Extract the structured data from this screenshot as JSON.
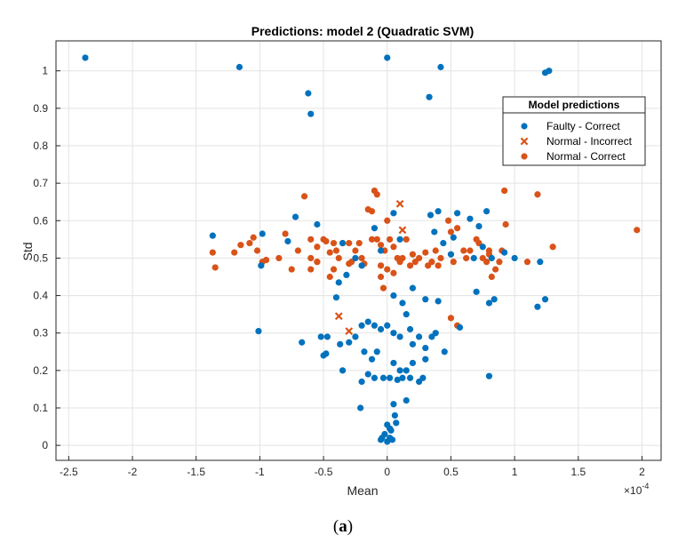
{
  "chart_data": {
    "type": "scatter",
    "title": "Predictions: model 2 (Quadratic SVM)",
    "xlabel": "Mean",
    "ylabel": "Std",
    "x_exponent_label": "×10^-4",
    "x_scale_base": "10",
    "x_scale_exp": "-4",
    "xlim": [
      -2.6,
      2.15
    ],
    "ylim": [
      -0.04,
      1.08
    ],
    "xticks": [
      -2.5,
      -2,
      -1.5,
      -1,
      -0.5,
      0,
      0.5,
      1,
      1.5,
      2
    ],
    "xtick_labels": [
      "-2.5",
      "-2",
      "-1.5",
      "-1",
      "-0.5",
      "0",
      "0.5",
      "1",
      "1.5",
      "2"
    ],
    "yticks": [
      0,
      0.1,
      0.2,
      0.3,
      0.4,
      0.5,
      0.6,
      0.7,
      0.8,
      0.9,
      1
    ],
    "ytick_labels": [
      "0",
      "0.1",
      "0.2",
      "0.3",
      "0.4",
      "0.5",
      "0.6",
      "0.7",
      "0.8",
      "0.9",
      "1"
    ],
    "grid": true,
    "legend_title": "Model predictions",
    "legend_position": "top-right",
    "series": [
      {
        "name": "Faulty - Correct",
        "marker": "dot",
        "color": "#0072BD",
        "points": [
          [
            -2.37,
            1.035
          ],
          [
            -1.16,
            1.01
          ],
          [
            0.0,
            1.035
          ],
          [
            0.42,
            1.01
          ],
          [
            1.24,
            0.995
          ],
          [
            1.27,
            1.0
          ],
          [
            -0.62,
            0.94
          ],
          [
            -0.6,
            0.885
          ],
          [
            0.33,
            0.93
          ],
          [
            -1.37,
            0.56
          ],
          [
            -0.98,
            0.565
          ],
          [
            -0.99,
            0.48
          ],
          [
            -0.72,
            0.61
          ],
          [
            -0.78,
            0.545
          ],
          [
            -1.01,
            0.305
          ],
          [
            -0.67,
            0.275
          ],
          [
            -0.55,
            0.59
          ],
          [
            -0.35,
            0.54
          ],
          [
            -0.25,
            0.5
          ],
          [
            -0.1,
            0.58
          ],
          [
            -0.05,
            0.52
          ],
          [
            0.05,
            0.62
          ],
          [
            0.1,
            0.55
          ],
          [
            0.34,
            0.615
          ],
          [
            0.4,
            0.625
          ],
          [
            0.37,
            0.57
          ],
          [
            0.44,
            0.54
          ],
          [
            0.55,
            0.62
          ],
          [
            0.52,
            0.555
          ],
          [
            0.5,
            0.51
          ],
          [
            0.65,
            0.605
          ],
          [
            0.72,
            0.585
          ],
          [
            0.78,
            0.625
          ],
          [
            0.68,
            0.5
          ],
          [
            0.75,
            0.53
          ],
          [
            0.82,
            0.5
          ],
          [
            0.92,
            0.515
          ],
          [
            1.0,
            0.5
          ],
          [
            0.7,
            0.41
          ],
          [
            0.8,
            0.38
          ],
          [
            0.84,
            0.39
          ],
          [
            1.2,
            0.49
          ],
          [
            1.18,
            0.37
          ],
          [
            1.24,
            0.39
          ],
          [
            0.8,
            0.185
          ],
          [
            -0.4,
            0.395
          ],
          [
            -0.38,
            0.435
          ],
          [
            -0.32,
            0.455
          ],
          [
            -0.2,
            0.48
          ],
          [
            0.05,
            0.4
          ],
          [
            0.12,
            0.38
          ],
          [
            0.2,
            0.42
          ],
          [
            0.3,
            0.39
          ],
          [
            0.4,
            0.385
          ],
          [
            0.57,
            0.315
          ],
          [
            0.38,
            0.3
          ],
          [
            0.35,
            0.29
          ],
          [
            0.3,
            0.26
          ],
          [
            0.45,
            0.25
          ],
          [
            -0.48,
            0.245
          ],
          [
            -0.52,
            0.29
          ],
          [
            -0.47,
            0.29
          ],
          [
            -0.37,
            0.27
          ],
          [
            -0.3,
            0.275
          ],
          [
            -0.35,
            0.2
          ],
          [
            -0.2,
            0.32
          ],
          [
            -0.15,
            0.33
          ],
          [
            -0.1,
            0.32
          ],
          [
            -0.05,
            0.31
          ],
          [
            0.0,
            0.32
          ],
          [
            0.05,
            0.3
          ],
          [
            0.1,
            0.29
          ],
          [
            0.15,
            0.35
          ],
          [
            0.18,
            0.31
          ],
          [
            0.25,
            0.29
          ],
          [
            0.2,
            0.27
          ],
          [
            -0.25,
            0.29
          ],
          [
            -0.18,
            0.25
          ],
          [
            -0.12,
            0.23
          ],
          [
            -0.08,
            0.25
          ],
          [
            0.05,
            0.22
          ],
          [
            0.1,
            0.2
          ],
          [
            0.15,
            0.2
          ],
          [
            0.2,
            0.22
          ],
          [
            0.3,
            0.23
          ],
          [
            -0.15,
            0.19
          ],
          [
            -0.1,
            0.18
          ],
          [
            -0.03,
            0.18
          ],
          [
            0.02,
            0.18
          ],
          [
            0.08,
            0.175
          ],
          [
            0.12,
            0.18
          ],
          [
            0.18,
            0.18
          ],
          [
            0.25,
            0.17
          ],
          [
            0.28,
            0.18
          ],
          [
            -0.2,
            0.17
          ],
          [
            -0.21,
            0.1
          ],
          [
            0.15,
            0.12
          ],
          [
            -0.5,
            0.24
          ],
          [
            0.05,
            0.11
          ],
          [
            0.06,
            0.08
          ],
          [
            0.07,
            0.06
          ],
          [
            0.03,
            0.04
          ],
          [
            0.02,
            0.02
          ],
          [
            0.0,
            0.01
          ],
          [
            -0.02,
            0.03
          ],
          [
            -0.04,
            0.02
          ],
          [
            0.04,
            0.015
          ],
          [
            -0.05,
            0.015
          ],
          [
            0.0,
            0.055
          ],
          [
            0.02,
            0.045
          ]
        ]
      },
      {
        "name": "Normal - Incorrect",
        "marker": "x",
        "color": "#D95319",
        "points": [
          [
            0.1,
            0.645
          ],
          [
            0.12,
            0.575
          ],
          [
            -0.3,
            0.305
          ],
          [
            -0.38,
            0.345
          ]
        ]
      },
      {
        "name": "Normal - Correct",
        "marker": "dot",
        "color": "#D95319",
        "points": [
          [
            -1.37,
            0.515
          ],
          [
            -1.35,
            0.475
          ],
          [
            -1.2,
            0.515
          ],
          [
            -1.15,
            0.535
          ],
          [
            -1.08,
            0.54
          ],
          [
            -1.05,
            0.555
          ],
          [
            -1.02,
            0.52
          ],
          [
            -0.98,
            0.49
          ],
          [
            -0.95,
            0.495
          ],
          [
            -0.8,
            0.565
          ],
          [
            -0.75,
            0.47
          ],
          [
            -0.7,
            0.52
          ],
          [
            -0.65,
            0.665
          ],
          [
            -0.6,
            0.55
          ],
          [
            -0.6,
            0.5
          ],
          [
            -0.6,
            0.47
          ],
          [
            -0.55,
            0.53
          ],
          [
            -0.55,
            0.49
          ],
          [
            -0.5,
            0.55
          ],
          [
            -0.48,
            0.545
          ],
          [
            -0.45,
            0.515
          ],
          [
            -0.42,
            0.54
          ],
          [
            -0.45,
            0.45
          ],
          [
            -0.42,
            0.47
          ],
          [
            -0.4,
            0.52
          ],
          [
            -0.38,
            0.5
          ],
          [
            -0.35,
            0.54
          ],
          [
            -0.3,
            0.54
          ],
          [
            -0.3,
            0.485
          ],
          [
            -0.28,
            0.49
          ],
          [
            -0.25,
            0.52
          ],
          [
            -0.22,
            0.54
          ],
          [
            -0.2,
            0.5
          ],
          [
            -0.18,
            0.485
          ],
          [
            -0.15,
            0.63
          ],
          [
            -0.12,
            0.625
          ],
          [
            -0.1,
            0.68
          ],
          [
            -0.08,
            0.67
          ],
          [
            -0.12,
            0.55
          ],
          [
            -0.08,
            0.55
          ],
          [
            -0.05,
            0.535
          ],
          [
            -0.02,
            0.52
          ],
          [
            -0.05,
            0.45
          ],
          [
            -0.03,
            0.42
          ],
          [
            0.0,
            0.6
          ],
          [
            0.02,
            0.55
          ],
          [
            0.05,
            0.53
          ],
          [
            0.08,
            0.5
          ],
          [
            0.1,
            0.49
          ],
          [
            0.12,
            0.5
          ],
          [
            0.15,
            0.55
          ],
          [
            0.18,
            0.48
          ],
          [
            0.2,
            0.51
          ],
          [
            0.22,
            0.49
          ],
          [
            0.25,
            0.5
          ],
          [
            0.3,
            0.515
          ],
          [
            0.32,
            0.48
          ],
          [
            0.35,
            0.49
          ],
          [
            0.38,
            0.52
          ],
          [
            0.4,
            0.48
          ],
          [
            0.42,
            0.5
          ],
          [
            0.48,
            0.6
          ],
          [
            0.5,
            0.57
          ],
          [
            0.52,
            0.49
          ],
          [
            0.55,
            0.58
          ],
          [
            0.6,
            0.52
          ],
          [
            0.62,
            0.5
          ],
          [
            0.65,
            0.52
          ],
          [
            0.7,
            0.55
          ],
          [
            0.72,
            0.54
          ],
          [
            0.75,
            0.5
          ],
          [
            0.78,
            0.49
          ],
          [
            0.8,
            0.52
          ],
          [
            0.82,
            0.45
          ],
          [
            0.85,
            0.47
          ],
          [
            0.88,
            0.49
          ],
          [
            0.9,
            0.52
          ],
          [
            0.92,
            0.68
          ],
          [
            0.93,
            0.59
          ],
          [
            1.1,
            0.49
          ],
          [
            1.18,
            0.67
          ],
          [
            1.3,
            0.53
          ],
          [
            1.96,
            0.575
          ],
          [
            0.5,
            0.34
          ],
          [
            0.55,
            0.32
          ],
          [
            -0.05,
            0.48
          ],
          [
            0.0,
            0.47
          ],
          [
            0.05,
            0.46
          ],
          [
            -0.55,
            0.49
          ],
          [
            0.8,
            0.51
          ],
          [
            -0.85,
            0.5
          ]
        ]
      }
    ]
  },
  "caption": {
    "label": "a"
  }
}
